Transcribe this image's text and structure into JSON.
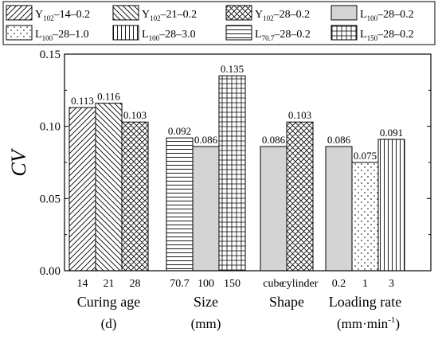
{
  "chart_data": {
    "type": "bar",
    "ylabel": "CV",
    "ylim": [
      0,
      0.15
    ],
    "yticks": [
      "0.00",
      "0.05",
      "0.10",
      "0.15"
    ],
    "grid": false,
    "legend_placement": "top",
    "legend": [
      {
        "id": "Y14",
        "base": "Y",
        "sub": "102",
        "suffix": "–14–0.2",
        "pattern": "diag-up"
      },
      {
        "id": "Y21",
        "base": "Y",
        "sub": "102",
        "suffix": "–21–0.2",
        "pattern": "diag-down"
      },
      {
        "id": "Y28",
        "base": "Y",
        "sub": "102",
        "suffix": "–28–0.2",
        "pattern": "crosshatch"
      },
      {
        "id": "L100",
        "base": "L",
        "sub": "100",
        "suffix": "–28–0.2",
        "pattern": "solid"
      },
      {
        "id": "L10",
        "base": "L",
        "sub": "100",
        "suffix": "–28–1.0",
        "pattern": "dots"
      },
      {
        "id": "L30",
        "base": "L",
        "sub": "100",
        "suffix": "–28–3.0",
        "pattern": "vertical"
      },
      {
        "id": "L707",
        "base": "L",
        "sub": "70.7",
        "suffix": "–28–0.2",
        "pattern": "horizontal"
      },
      {
        "id": "L150",
        "base": "L",
        "sub": "150",
        "suffix": "–28–0.2",
        "pattern": "grid"
      }
    ],
    "groups": [
      {
        "label_lines": [
          "Curing age",
          "(d)"
        ],
        "bars": [
          {
            "category": "14",
            "value": 0.113,
            "label": "0.113",
            "series": "Y14"
          },
          {
            "category": "21",
            "value": 0.116,
            "label": "0.116",
            "series": "Y21"
          },
          {
            "category": "28",
            "value": 0.103,
            "label": "0.103",
            "series": "Y28"
          }
        ]
      },
      {
        "label_lines": [
          "Size",
          "(mm)"
        ],
        "bars": [
          {
            "category": "70.7",
            "value": 0.092,
            "label": "0.092",
            "series": "L707"
          },
          {
            "category": "100",
            "value": 0.086,
            "label": "0.086",
            "series": "L100"
          },
          {
            "category": "150",
            "value": 0.135,
            "label": "0.135",
            "series": "L150"
          }
        ]
      },
      {
        "label_lines": [
          "Shape"
        ],
        "bars": [
          {
            "category": "cube",
            "value": 0.086,
            "label": "0.086",
            "series": "L100"
          },
          {
            "category": "cylinder",
            "value": 0.103,
            "label": "0.103",
            "series": "Y28"
          }
        ]
      },
      {
        "label_lines": [
          "Loading rate",
          "(mm·min",
          "-1",
          ")"
        ],
        "bars": [
          {
            "category": "0.2",
            "value": 0.086,
            "label": "0.086",
            "series": "L100"
          },
          {
            "category": "1",
            "value": 0.075,
            "label": "0.075",
            "series": "L10"
          },
          {
            "category": "3",
            "value": 0.091,
            "label": "0.091",
            "series": "L30"
          }
        ]
      }
    ]
  }
}
